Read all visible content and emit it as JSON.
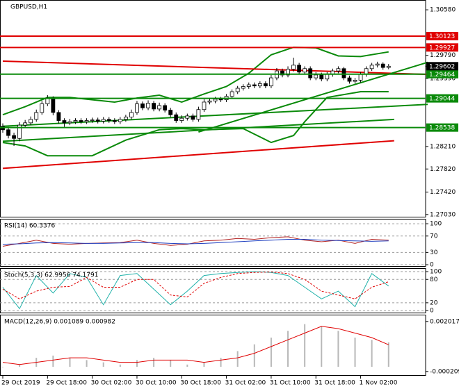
{
  "chart_data": [
    {
      "type": "candlestick",
      "title": "GBPUSD,H1",
      "categories": [
        "29 Oct 2019",
        null,
        null,
        null,
        null,
        null,
        null,
        null,
        "29 Oct 18:00",
        null,
        null,
        null,
        null,
        null,
        null,
        null,
        "30 Oct 02:00",
        null,
        null,
        null,
        null,
        null,
        null,
        null,
        "30 Oct 10:00",
        null,
        null,
        null,
        null,
        null,
        null,
        null,
        "30 Oct 18:00",
        null,
        null,
        null,
        null,
        null,
        null,
        null,
        "31 Oct 02:00",
        null,
        null,
        null,
        null,
        null,
        null,
        null,
        "31 Oct 10:00",
        null,
        null,
        null,
        null,
        null,
        null,
        null,
        "31 Oct 18:00",
        null,
        null,
        null,
        null,
        null,
        null,
        null,
        "1 Nov 02:00",
        null,
        null,
        null,
        null,
        null
      ],
      "open": [
        1.2856,
        1.285,
        1.284,
        1.2835,
        1.2858,
        1.2862,
        1.2868,
        1.288,
        1.2895,
        1.2905,
        1.288,
        1.2866,
        1.2862,
        1.2864,
        1.2866,
        1.2864,
        1.2866,
        1.2867,
        1.2865,
        1.2868,
        1.2866,
        1.2864,
        1.2868,
        1.2872,
        1.288,
        1.2895,
        1.2888,
        1.2896,
        1.2886,
        1.2892,
        1.2884,
        1.2876,
        1.2866,
        1.287,
        1.2874,
        1.2868,
        1.2885,
        1.2898,
        1.29,
        1.2903,
        1.2902,
        1.2908,
        1.2916,
        1.2922,
        1.2925,
        1.2928,
        1.2926,
        1.293,
        1.2926,
        1.294,
        1.2952,
        1.2945,
        1.2955,
        1.2962,
        1.295,
        1.2956,
        1.294,
        1.2945,
        1.2938,
        1.2946,
        1.2952,
        1.2956,
        1.294,
        1.2934,
        1.2936,
        1.2946,
        1.2956,
        1.2962,
        1.2964,
        1.2958
      ],
      "high": [
        1.2861,
        1.2855,
        1.2845,
        1.2863,
        1.2867,
        1.2873,
        1.2885,
        1.29,
        1.291,
        1.2908,
        1.2884,
        1.287,
        1.2869,
        1.287,
        1.287,
        1.287,
        1.2871,
        1.2871,
        1.2872,
        1.2872,
        1.287,
        1.2872,
        1.2876,
        1.2885,
        1.29,
        1.2899,
        1.2901,
        1.29,
        1.2897,
        1.2896,
        1.2888,
        1.288,
        1.2875,
        1.2878,
        1.2878,
        1.289,
        1.2903,
        1.2905,
        1.2907,
        1.2907,
        1.2912,
        1.292,
        1.2926,
        1.2929,
        1.2932,
        1.2932,
        1.2934,
        1.2934,
        1.2945,
        1.2957,
        1.2956,
        1.296,
        1.2975,
        1.2966,
        1.296,
        1.296,
        1.295,
        1.2949,
        1.295,
        1.2956,
        1.296,
        1.2959,
        1.2944,
        1.294,
        1.295,
        1.296,
        1.2966,
        1.2968,
        1.2967,
        1.2964
      ],
      "low": [
        1.2845,
        1.2835,
        1.2822,
        1.283,
        1.2854,
        1.2858,
        1.2864,
        1.2876,
        1.2891,
        1.2875,
        1.2861,
        1.2855,
        1.2858,
        1.286,
        1.286,
        1.286,
        1.2862,
        1.2861,
        1.2861,
        1.2862,
        1.286,
        1.286,
        1.2864,
        1.2868,
        1.2876,
        1.2884,
        1.2884,
        1.2882,
        1.2882,
        1.288,
        1.2872,
        1.2862,
        1.2862,
        1.2866,
        1.2864,
        1.2864,
        1.2881,
        1.2894,
        1.2896,
        1.2898,
        1.2898,
        1.2904,
        1.2912,
        1.2918,
        1.2921,
        1.2922,
        1.2922,
        1.2922,
        1.2922,
        1.2936,
        1.2941,
        1.2941,
        1.2951,
        1.2946,
        1.2946,
        1.2936,
        1.2936,
        1.2934,
        1.2934,
        1.2942,
        1.2948,
        1.2936,
        1.293,
        1.293,
        1.2932,
        1.2942,
        1.2952,
        1.2958,
        1.2954,
        1.2955
      ],
      "close": [
        1.285,
        1.284,
        1.2835,
        1.2858,
        1.2862,
        1.2868,
        1.288,
        1.2895,
        1.2905,
        1.288,
        1.2866,
        1.2862,
        1.2864,
        1.2866,
        1.2864,
        1.2866,
        1.2867,
        1.2865,
        1.2868,
        1.2866,
        1.2864,
        1.2868,
        1.2872,
        1.288,
        1.2895,
        1.2888,
        1.2896,
        1.2886,
        1.2892,
        1.2884,
        1.2876,
        1.2866,
        1.287,
        1.2874,
        1.2868,
        1.2885,
        1.2898,
        1.29,
        1.2903,
        1.2902,
        1.2908,
        1.2916,
        1.2922,
        1.2925,
        1.2928,
        1.2926,
        1.293,
        1.2926,
        1.294,
        1.2952,
        1.2945,
        1.2955,
        1.2962,
        1.295,
        1.2956,
        1.294,
        1.2945,
        1.2938,
        1.2946,
        1.2952,
        1.2956,
        1.294,
        1.2934,
        1.2936,
        1.2946,
        1.2956,
        1.2962,
        1.2964,
        1.2958,
        1.29602
      ],
      "ylim": [
        1.2698,
        1.3075
      ],
      "yticks": [
        {
          "value": 1.3058,
          "label": "1.30580"
        },
        {
          "value": 1.2979,
          "label": "1.29790"
        },
        {
          "value": 1.2939,
          "label": "1.29390"
        },
        {
          "value": 1.2821,
          "label": "1.28210"
        },
        {
          "value": 1.2782,
          "label": "1.27820"
        },
        {
          "value": 1.2742,
          "label": "1.27420"
        },
        {
          "value": 1.2703,
          "label": "1.27030"
        }
      ],
      "overlays": [
        {
          "color": "#0a8a0a",
          "x": [
            0,
            4,
            8,
            12,
            16,
            20,
            24,
            28,
            32,
            36,
            40,
            44,
            48,
            52,
            56,
            60,
            64,
            69
          ],
          "values": [
            1.2876,
            1.289,
            1.2906,
            1.2906,
            1.2902,
            1.2898,
            1.2905,
            1.291,
            1.2898,
            1.2912,
            1.2925,
            1.2948,
            1.298,
            1.2993,
            1.2992,
            1.2978,
            1.2977,
            1.2985
          ]
        },
        {
          "color": "#0a8a0a",
          "x": [
            0,
            4,
            8,
            16,
            22,
            28,
            32,
            36,
            43,
            48,
            52,
            54,
            58,
            64,
            69
          ],
          "values": [
            1.2828,
            1.2822,
            1.2805,
            1.2805,
            1.2832,
            1.285,
            1.2852,
            1.285,
            1.2852,
            1.2828,
            1.284,
            1.2864,
            1.2906,
            1.2916,
            1.2916
          ]
        },
        {
          "color": "#e00000",
          "x": [
            0,
            76
          ],
          "values": [
            1.2969,
            1.2946
          ]
        },
        {
          "color": "#e00000",
          "x": [
            0,
            70
          ],
          "values": [
            1.2783,
            1.2831
          ]
        },
        {
          "color": "#0a8a0a",
          "x": [
            35,
            76
          ],
          "values": [
            1.2846,
            1.2967
          ]
        },
        {
          "color": "#0a8a0a",
          "x": [
            0,
            76
          ],
          "values": [
            1.2856,
            1.2894
          ]
        },
        {
          "color": "#0a8a0a",
          "x": [
            0,
            70
          ],
          "values": [
            1.283,
            1.2868
          ]
        }
      ],
      "levels": [
        {
          "value": 1.30123,
          "color": "#e00000"
        },
        {
          "value": 1.29927,
          "color": "#e00000"
        },
        {
          "value": 1.29464,
          "color": "#0a8a0a"
        },
        {
          "value": 1.29044,
          "color": "#0a8a0a"
        },
        {
          "value": 1.28538,
          "color": "#0a8a0a"
        }
      ],
      "current": {
        "value": 1.29602,
        "color": "#000000"
      }
    },
    {
      "type": "line",
      "title": "RSI(14) 60.3376",
      "grid": true,
      "x": [
        0,
        3,
        6,
        9,
        12,
        15,
        18,
        21,
        24,
        27,
        30,
        33,
        36,
        39,
        42,
        45,
        48,
        51,
        54,
        57,
        60,
        63,
        66,
        69
      ],
      "series": [
        {
          "color": "#b22222",
          "values": [
            45,
            52,
            60,
            52,
            50,
            52,
            53,
            54,
            60,
            52,
            47,
            50,
            58,
            60,
            64,
            62,
            66,
            68,
            60,
            56,
            60,
            52,
            62,
            60
          ]
        },
        {
          "color": "#1f3fbf",
          "values": [
            50,
            51,
            53,
            54,
            53,
            52,
            52,
            53,
            54,
            54,
            52,
            51,
            52,
            54,
            56,
            58,
            60,
            62,
            62,
            60,
            59,
            58,
            57,
            58
          ]
        }
      ],
      "ylim": [
        -5,
        112
      ],
      "yticks": [
        100,
        70,
        30,
        0
      ]
    },
    {
      "type": "line",
      "title": "Stoch(5,3,3) 62.9956 74.1791",
      "grid": true,
      "x": [
        0,
        3,
        6,
        9,
        12,
        15,
        18,
        21,
        24,
        27,
        30,
        33,
        36,
        39,
        42,
        45,
        48,
        51,
        54,
        57,
        60,
        63,
        66,
        69
      ],
      "series": [
        {
          "color": "#20b2aa",
          "values": [
            60,
            5,
            90,
            45,
            95,
            85,
            15,
            90,
            95,
            55,
            15,
            50,
            90,
            95,
            98,
            100,
            98,
            90,
            60,
            30,
            50,
            10,
            95,
            63
          ]
        },
        {
          "color": "#e00000",
          "dash": true,
          "values": [
            55,
            30,
            50,
            60,
            62,
            85,
            60,
            60,
            80,
            80,
            40,
            35,
            70,
            85,
            95,
            98,
            99,
            95,
            80,
            50,
            40,
            30,
            60,
            74
          ]
        }
      ],
      "ylim": [
        -7,
        109
      ],
      "yticks": [
        100,
        80,
        20,
        0
      ]
    },
    {
      "type": "combo",
      "title": "MACD(12,26,9) 0.001089 0.000982",
      "grid": false,
      "x": [
        0,
        3,
        6,
        9,
        12,
        15,
        18,
        21,
        24,
        27,
        30,
        33,
        36,
        39,
        42,
        45,
        48,
        51,
        54,
        57,
        60,
        63,
        66,
        69
      ],
      "series": [
        {
          "type": "bar",
          "color": "#b8b8b8",
          "values": [
            0,
            0.0001,
            0.0004,
            0.0005,
            0.0004,
            0.0003,
            0.0002,
            0.0001,
            0.0003,
            0.0004,
            0.0003,
            0.0001,
            0.0002,
            0.0004,
            0.0007,
            0.001,
            0.0013,
            0.0016,
            0.0019,
            0.0018,
            0.0016,
            0.0013,
            0.0012,
            0.001089
          ]
        },
        {
          "type": "line",
          "color": "#e00000",
          "values": [
            0.0002,
            0.0001,
            0.0002,
            0.0003,
            0.0004,
            0.0004,
            0.0003,
            0.0002,
            0.0002,
            0.0003,
            0.0003,
            0.0003,
            0.0002,
            0.0003,
            0.0004,
            0.0006,
            0.0009,
            0.0012,
            0.0015,
            0.0018,
            0.0017,
            0.0015,
            0.0013,
            0.000982
          ]
        }
      ],
      "ylim": [
        -0.0004,
        0.00232
      ],
      "yticks": [
        0.002017,
        -0.000209
      ]
    }
  ]
}
